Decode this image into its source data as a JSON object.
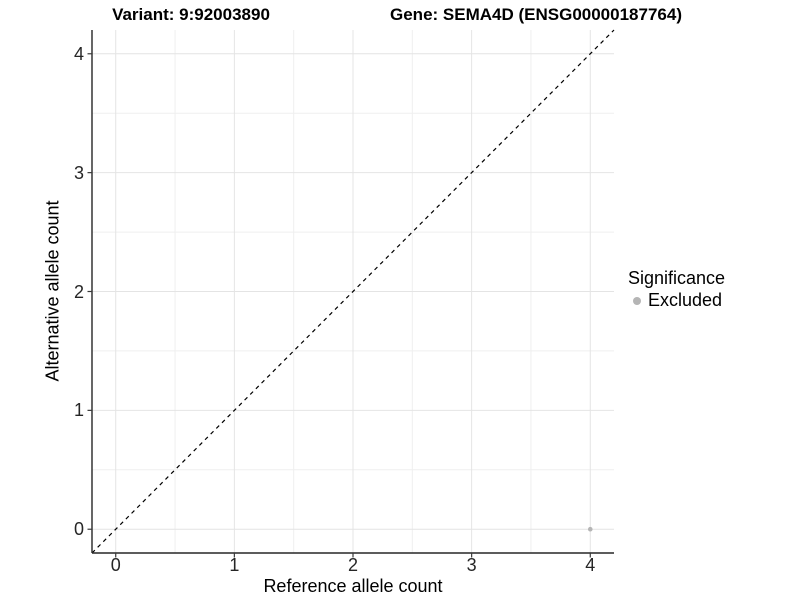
{
  "titles": {
    "variant": "Variant: 9:92003890",
    "gene": "Gene: SEMA4D (ENSG00000187764)"
  },
  "axes": {
    "x": {
      "label": "Reference allele count"
    },
    "y": {
      "label": "Alternative allele count"
    }
  },
  "legend": {
    "title": "Significance",
    "items": [
      {
        "label": "Excluded",
        "color": "#b5b5b5",
        "marker": "circle-icon"
      }
    ]
  },
  "chart_data": {
    "type": "scatter",
    "title": "Variant: 9:92003890 | Gene: SEMA4D (ENSG00000187764)",
    "xlabel": "Reference allele count",
    "ylabel": "Alternative allele count",
    "xlim": [
      -0.2,
      4.2
    ],
    "ylim": [
      -0.2,
      4.2
    ],
    "x_ticks": [
      0,
      1,
      2,
      3,
      4
    ],
    "y_ticks": [
      0,
      1,
      2,
      3,
      4
    ],
    "grid": "major and minor, minor at 0.5 steps",
    "legend_position": "right",
    "series": [
      {
        "name": "Excluded",
        "color": "#b5b5b5",
        "point_radius": 2.3,
        "points": [
          {
            "x": 4,
            "y": 0
          }
        ]
      }
    ],
    "reference_line": {
      "type": "identity y=x",
      "style": "dashed",
      "color": "#000000"
    }
  },
  "colors": {
    "background": "#ffffff",
    "grid_major": "#e4e4e4",
    "grid_minor": "#efefef",
    "axis_line": "#262626",
    "tick_mark": "#3a3a3a",
    "tick_text": "#262626",
    "point": "#b5b5b5"
  }
}
